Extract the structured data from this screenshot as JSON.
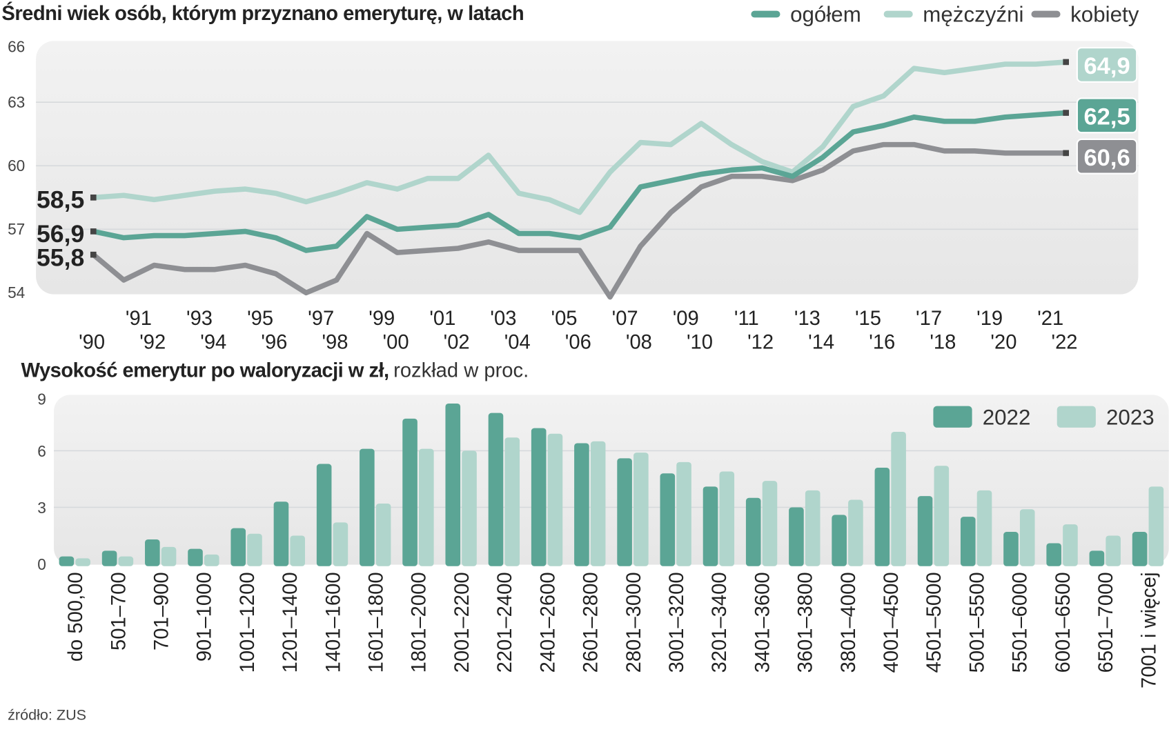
{
  "chart_data": [
    {
      "type": "line",
      "title": "Średni wiek osób, którym przyznano emeryturę, w latach",
      "x": [
        "'90",
        "'91",
        "'92",
        "'93",
        "'94",
        "'95",
        "'96",
        "'97",
        "'98",
        "'99",
        "'00",
        "'01",
        "'02",
        "'03",
        "'04",
        "'05",
        "'06",
        "'07",
        "'08",
        "'09",
        "'10",
        "'11",
        "'12",
        "'13",
        "'14",
        "'15",
        "'16",
        "'17",
        "'18",
        "'19",
        "'20",
        "'21",
        "'22"
      ],
      "ylim": [
        54,
        66
      ],
      "yticks": [
        "54",
        "57",
        "60",
        "63",
        "66"
      ],
      "grid": true,
      "legend": "top-right",
      "series": [
        {
          "name": "ogółem",
          "color": "#5ba595",
          "start_label": "56,9",
          "end_label": "62,5",
          "values": [
            56.9,
            56.6,
            56.7,
            56.7,
            56.8,
            56.9,
            56.6,
            56.0,
            56.2,
            57.6,
            57.0,
            57.1,
            57.2,
            57.7,
            56.8,
            56.8,
            56.6,
            57.1,
            59.0,
            59.3,
            59.6,
            59.8,
            59.9,
            59.5,
            60.4,
            61.6,
            61.9,
            62.3,
            62.1,
            62.1,
            62.3,
            62.4,
            62.5
          ]
        },
        {
          "name": "mężczyźni",
          "color": "#b0d5cc",
          "start_label": "58,5",
          "end_label": "64,9",
          "values": [
            58.5,
            58.6,
            58.4,
            58.6,
            58.8,
            58.9,
            58.7,
            58.3,
            58.7,
            59.2,
            58.9,
            59.4,
            59.4,
            60.5,
            58.7,
            58.4,
            57.8,
            59.7,
            61.1,
            61.0,
            62.0,
            61.0,
            60.2,
            59.7,
            60.9,
            62.8,
            63.3,
            64.6,
            64.4,
            64.6,
            64.8,
            64.8,
            64.9
          ]
        },
        {
          "name": "kobiety",
          "color": "#8e8f93",
          "start_label": "55,8",
          "end_label": "60,6",
          "values": [
            55.8,
            54.6,
            55.3,
            55.1,
            55.1,
            55.3,
            54.9,
            54.0,
            54.6,
            56.8,
            55.9,
            56.0,
            56.1,
            56.4,
            56.0,
            56.0,
            56.0,
            53.8,
            56.2,
            57.8,
            59.0,
            59.5,
            59.5,
            59.3,
            59.8,
            60.7,
            61.0,
            61.0,
            60.7,
            60.7,
            60.6,
            60.6,
            60.6
          ]
        }
      ]
    },
    {
      "type": "bar",
      "title": "Wysokość emerytur po waloryzacji w zł,",
      "subtitle": "rozkład w proc.",
      "categories": [
        "do 500,00",
        "501–700",
        "701–900",
        "901–1000",
        "1001–1200",
        "1201–1400",
        "1401–1600",
        "1601–1800",
        "1801–2000",
        "2001–2200",
        "2201–2400",
        "2401–2600",
        "2601–2800",
        "2801–3000",
        "3001–3200",
        "3201–3400",
        "3401–3600",
        "3601–3800",
        "3801–4000",
        "4001–4500",
        "4501–5000",
        "5001–5500",
        "5501–6000",
        "6001–6500",
        "6501–7000",
        "7001 i więcej"
      ],
      "ylim": [
        0,
        9
      ],
      "yticks": [
        "0",
        "3",
        "6",
        "9"
      ],
      "grid": true,
      "legend": "top-right",
      "series": [
        {
          "name": "2022",
          "color": "#5ba595",
          "values": [
            0.4,
            0.7,
            1.3,
            0.8,
            1.9,
            3.3,
            5.3,
            6.1,
            7.7,
            8.5,
            8.0,
            7.2,
            6.4,
            5.6,
            4.8,
            4.1,
            3.5,
            3.0,
            2.6,
            5.1,
            3.6,
            2.5,
            1.7,
            1.1,
            0.7,
            1.7
          ]
        },
        {
          "name": "2023",
          "color": "#b0d5cc",
          "values": [
            0.3,
            0.4,
            0.9,
            0.5,
            1.6,
            1.5,
            2.2,
            3.2,
            6.1,
            6.0,
            6.7,
            6.9,
            6.5,
            5.9,
            5.4,
            4.9,
            4.4,
            3.9,
            3.4,
            7.0,
            5.2,
            3.9,
            2.9,
            2.1,
            1.5,
            4.1
          ]
        }
      ]
    }
  ],
  "source": "źródło: ZUS"
}
